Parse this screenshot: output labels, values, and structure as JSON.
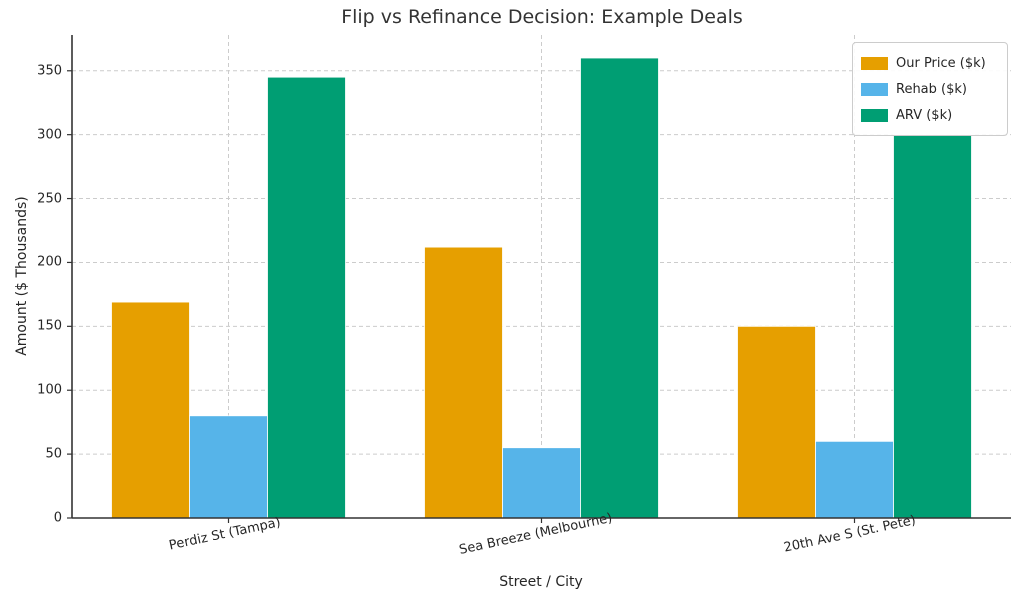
{
  "title": "Flip vs Refinance Decision: Example Deals",
  "chart_data": {
    "type": "bar",
    "title": "Flip vs Refinance Decision: Example Deals",
    "xlabel": "Street / City",
    "ylabel": "Amount ($ Thousands)",
    "categories": [
      "Perdiz St (Tampa)",
      "Sea Breeze (Melbourne)",
      "20th Ave S (St. Pete)"
    ],
    "series": [
      {
        "name": "Our Price ($k)",
        "color": "#E69F00",
        "values": [
          169,
          212,
          150
        ]
      },
      {
        "name": "Rehab ($k)",
        "color": "#56B4E9",
        "values": [
          80,
          55,
          60
        ]
      },
      {
        "name": "ARV ($k)",
        "color": "#009E73",
        "values": [
          345,
          360,
          300
        ]
      }
    ],
    "yticks": [
      0,
      50,
      100,
      150,
      200,
      250,
      300,
      350
    ],
    "ylim": [
      0,
      378
    ],
    "grid": true,
    "grid_color": "#cccccc",
    "spine_color": "#333333",
    "text_color": "#262626",
    "legend_position": "upper right"
  }
}
